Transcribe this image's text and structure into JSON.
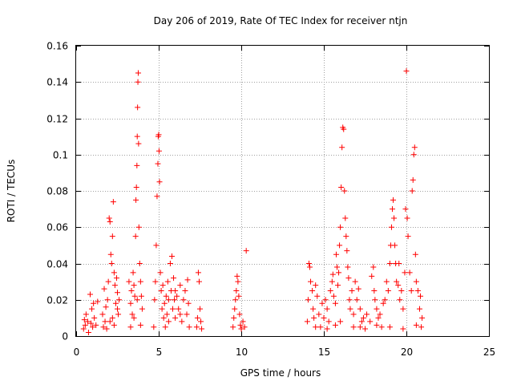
{
  "chart_data": {
    "type": "scatter",
    "title": "Day 206 of 2019, Rate Of TEC Index for receiver ntjn",
    "xlabel": "GPS time / hours",
    "ylabel": "ROTI / TECUs",
    "xlim": [
      0,
      25
    ],
    "ylim": [
      0,
      0.16
    ],
    "xticks": [
      0,
      5,
      10,
      15,
      20,
      25
    ],
    "xtick_labels": [
      "0",
      "5",
      "10",
      "15",
      "20",
      "25"
    ],
    "yticks": [
      0,
      0.02,
      0.04,
      0.06,
      0.08,
      0.1,
      0.12,
      0.14,
      0.16
    ],
    "ytick_labels": [
      "0",
      "0.02",
      "0.04",
      "0.06",
      "0.08",
      "0.1",
      "0.12",
      "0.14",
      "0.16"
    ],
    "grid": true,
    "marker": "+",
    "color": "#ff0000",
    "series": [
      {
        "name": "ROTI",
        "points": [
          [
            0.45,
            0.004
          ],
          [
            0.5,
            0.009
          ],
          [
            0.55,
            0.006
          ],
          [
            0.6,
            0.012
          ],
          [
            0.7,
            0.008
          ],
          [
            0.75,
            0.002
          ],
          [
            0.85,
            0.023
          ],
          [
            0.9,
            0.007
          ],
          [
            0.95,
            0.015
          ],
          [
            1.0,
            0.005
          ],
          [
            1.05,
            0.018
          ],
          [
            1.1,
            0.01
          ],
          [
            1.2,
            0.006
          ],
          [
            1.3,
            0.019
          ],
          [
            1.6,
            0.012
          ],
          [
            1.7,
            0.026
          ],
          [
            1.75,
            0.008
          ],
          [
            1.8,
            0.016
          ],
          [
            1.85,
            0.004
          ],
          [
            1.9,
            0.02
          ],
          [
            1.95,
            0.03
          ],
          [
            2.0,
            0.065
          ],
          [
            2.05,
            0.063
          ],
          [
            2.1,
            0.045
          ],
          [
            2.15,
            0.04
          ],
          [
            2.2,
            0.055
          ],
          [
            2.25,
            0.074
          ],
          [
            2.3,
            0.035
          ],
          [
            2.35,
            0.028
          ],
          [
            2.4,
            0.018
          ],
          [
            2.45,
            0.032
          ],
          [
            2.5,
            0.024
          ],
          [
            2.55,
            0.012
          ],
          [
            2.6,
            0.02
          ],
          [
            2.2,
            0.01
          ],
          [
            2.3,
            0.006
          ],
          [
            2.5,
            0.015
          ],
          [
            1.65,
            0.005
          ],
          [
            2.05,
            0.008
          ],
          [
            3.2,
            0.03
          ],
          [
            3.3,
            0.018
          ],
          [
            3.35,
            0.025
          ],
          [
            3.4,
            0.012
          ],
          [
            3.45,
            0.035
          ],
          [
            3.5,
            0.028
          ],
          [
            3.55,
            0.022
          ],
          [
            3.6,
            0.055
          ],
          [
            3.62,
            0.075
          ],
          [
            3.65,
            0.082
          ],
          [
            3.68,
            0.094
          ],
          [
            3.7,
            0.11
          ],
          [
            3.72,
            0.126
          ],
          [
            3.74,
            0.14
          ],
          [
            3.76,
            0.145
          ],
          [
            3.78,
            0.106
          ],
          [
            3.8,
            0.06
          ],
          [
            3.85,
            0.04
          ],
          [
            3.9,
            0.03
          ],
          [
            3.95,
            0.022
          ],
          [
            4.0,
            0.015
          ],
          [
            3.3,
            0.005
          ],
          [
            3.5,
            0.01
          ],
          [
            3.7,
            0.02
          ],
          [
            3.9,
            0.006
          ],
          [
            4.7,
            0.005
          ],
          [
            4.75,
            0.02
          ],
          [
            4.8,
            0.03
          ],
          [
            4.85,
            0.05
          ],
          [
            4.9,
            0.077
          ],
          [
            4.95,
            0.095
          ],
          [
            4.97,
            0.11
          ],
          [
            5.0,
            0.111
          ],
          [
            5.02,
            0.102
          ],
          [
            5.05,
            0.085
          ],
          [
            5.1,
            0.035
          ],
          [
            5.15,
            0.025
          ],
          [
            5.2,
            0.015
          ],
          [
            5.25,
            0.028
          ],
          [
            5.3,
            0.01
          ],
          [
            5.35,
            0.018
          ],
          [
            5.4,
            0.005
          ],
          [
            5.45,
            0.022
          ],
          [
            5.5,
            0.012
          ],
          [
            5.55,
            0.03
          ],
          [
            5.6,
            0.008
          ],
          [
            5.7,
            0.04
          ],
          [
            5.75,
            0.025
          ],
          [
            5.8,
            0.044
          ],
          [
            5.85,
            0.015
          ],
          [
            5.9,
            0.032
          ],
          [
            5.95,
            0.02
          ],
          [
            6.0,
            0.01
          ],
          [
            6.1,
            0.022
          ],
          [
            6.2,
            0.015
          ],
          [
            6.3,
            0.028
          ],
          [
            6.4,
            0.008
          ],
          [
            6.5,
            0.02
          ],
          [
            6.6,
            0.025
          ],
          [
            6.7,
            0.012
          ],
          [
            6.75,
            0.031
          ],
          [
            6.8,
            0.018
          ],
          [
            6.85,
            0.005
          ],
          [
            5.6,
            0.02
          ],
          [
            6.0,
            0.025
          ],
          [
            6.3,
            0.012
          ],
          [
            7.3,
            0.005
          ],
          [
            7.35,
            0.01
          ],
          [
            7.4,
            0.035
          ],
          [
            7.45,
            0.03
          ],
          [
            7.5,
            0.015
          ],
          [
            7.55,
            0.008
          ],
          [
            7.6,
            0.004
          ],
          [
            9.5,
            0.005
          ],
          [
            9.55,
            0.01
          ],
          [
            9.6,
            0.015
          ],
          [
            9.65,
            0.02
          ],
          [
            9.7,
            0.025
          ],
          [
            9.75,
            0.033
          ],
          [
            9.8,
            0.03
          ],
          [
            9.85,
            0.022
          ],
          [
            9.9,
            0.012
          ],
          [
            9.95,
            0.006
          ],
          [
            10.0,
            0.004
          ],
          [
            10.1,
            0.008
          ],
          [
            10.2,
            0.005
          ],
          [
            10.3,
            0.047
          ],
          [
            14.0,
            0.008
          ],
          [
            14.05,
            0.02
          ],
          [
            14.1,
            0.04
          ],
          [
            14.15,
            0.038
          ],
          [
            14.2,
            0.03
          ],
          [
            14.3,
            0.025
          ],
          [
            14.35,
            0.015
          ],
          [
            14.4,
            0.01
          ],
          [
            14.5,
            0.028
          ],
          [
            14.6,
            0.022
          ],
          [
            14.7,
            0.012
          ],
          [
            14.8,
            0.005
          ],
          [
            14.9,
            0.018
          ],
          [
            15.0,
            0.01
          ],
          [
            15.1,
            0.02
          ],
          [
            15.2,
            0.015
          ],
          [
            15.3,
            0.008
          ],
          [
            15.4,
            0.025
          ],
          [
            15.5,
            0.03
          ],
          [
            15.55,
            0.034
          ],
          [
            15.6,
            0.022
          ],
          [
            15.7,
            0.018
          ],
          [
            15.75,
            0.045
          ],
          [
            15.8,
            0.038
          ],
          [
            15.85,
            0.028
          ],
          [
            15.9,
            0.035
          ],
          [
            15.95,
            0.05
          ],
          [
            16.0,
            0.06
          ],
          [
            16.05,
            0.082
          ],
          [
            16.1,
            0.104
          ],
          [
            16.15,
            0.115
          ],
          [
            16.2,
            0.114
          ],
          [
            16.25,
            0.08
          ],
          [
            16.3,
            0.065
          ],
          [
            16.35,
            0.055
          ],
          [
            16.4,
            0.047
          ],
          [
            16.45,
            0.038
          ],
          [
            16.5,
            0.032
          ],
          [
            16.55,
            0.02
          ],
          [
            16.6,
            0.015
          ],
          [
            16.7,
            0.025
          ],
          [
            16.8,
            0.012
          ],
          [
            16.9,
            0.03
          ],
          [
            17.0,
            0.02
          ],
          [
            17.1,
            0.026
          ],
          [
            17.2,
            0.015
          ],
          [
            17.3,
            0.008
          ],
          [
            17.4,
            0.01
          ],
          [
            17.6,
            0.012
          ],
          [
            17.8,
            0.008
          ],
          [
            17.9,
            0.033
          ],
          [
            18.0,
            0.038
          ],
          [
            18.05,
            0.025
          ],
          [
            18.1,
            0.02
          ],
          [
            18.2,
            0.015
          ],
          [
            18.3,
            0.01
          ],
          [
            18.4,
            0.012
          ],
          [
            18.5,
            0.005
          ],
          [
            18.6,
            0.018
          ],
          [
            18.7,
            0.02
          ],
          [
            18.8,
            0.03
          ],
          [
            18.9,
            0.025
          ],
          [
            19.0,
            0.04
          ],
          [
            19.05,
            0.05
          ],
          [
            19.1,
            0.06
          ],
          [
            19.15,
            0.07
          ],
          [
            19.2,
            0.075
          ],
          [
            19.25,
            0.065
          ],
          [
            19.3,
            0.05
          ],
          [
            19.35,
            0.04
          ],
          [
            19.4,
            0.03
          ],
          [
            19.5,
            0.028
          ],
          [
            19.55,
            0.04
          ],
          [
            19.6,
            0.02
          ],
          [
            19.7,
            0.025
          ],
          [
            19.8,
            0.015
          ],
          [
            19.9,
            0.035
          ],
          [
            19.95,
            0.07
          ],
          [
            20.0,
            0.146
          ],
          [
            20.05,
            0.065
          ],
          [
            20.1,
            0.055
          ],
          [
            20.2,
            0.035
          ],
          [
            20.3,
            0.025
          ],
          [
            20.35,
            0.08
          ],
          [
            20.4,
            0.086
          ],
          [
            20.45,
            0.1
          ],
          [
            20.5,
            0.104
          ],
          [
            20.55,
            0.045
          ],
          [
            20.6,
            0.03
          ],
          [
            20.7,
            0.025
          ],
          [
            20.8,
            0.015
          ],
          [
            20.85,
            0.022
          ],
          [
            20.9,
            0.005
          ],
          [
            20.95,
            0.01
          ],
          [
            14.5,
            0.005
          ],
          [
            15.2,
            0.004
          ],
          [
            16.0,
            0.008
          ],
          [
            16.8,
            0.005
          ],
          [
            17.5,
            0.004
          ],
          [
            18.2,
            0.006
          ],
          [
            19.0,
            0.005
          ],
          [
            19.8,
            0.004
          ],
          [
            20.6,
            0.006
          ],
          [
            15.7,
            0.006
          ],
          [
            17.2,
            0.005
          ]
        ]
      }
    ]
  }
}
